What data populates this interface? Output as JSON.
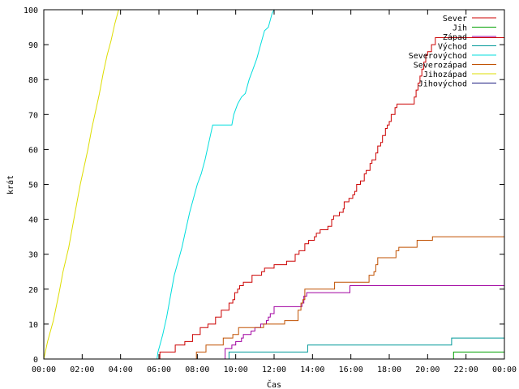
{
  "chart_data": {
    "type": "line",
    "title": "",
    "xlabel": "Čas",
    "ylabel": "krát",
    "x_unit": "hours",
    "xlim": [
      0,
      24
    ],
    "ylim": [
      0,
      100
    ],
    "xticks": [
      {
        "v": 0,
        "label": "00:00"
      },
      {
        "v": 2,
        "label": "02:00"
      },
      {
        "v": 4,
        "label": "04:00"
      },
      {
        "v": 6,
        "label": "06:00"
      },
      {
        "v": 8,
        "label": "08:00"
      },
      {
        "v": 10,
        "label": "10:00"
      },
      {
        "v": 12,
        "label": "12:00"
      },
      {
        "v": 14,
        "label": "14:00"
      },
      {
        "v": 16,
        "label": "16:00"
      },
      {
        "v": 18,
        "label": "18:00"
      },
      {
        "v": 20,
        "label": "20:00"
      },
      {
        "v": 22,
        "label": "22:00"
      },
      {
        "v": 24,
        "label": "00:00"
      }
    ],
    "yticks": [
      0,
      10,
      20,
      30,
      40,
      50,
      60,
      70,
      80,
      90,
      100
    ],
    "grid": false,
    "legend_position": "top-right",
    "series": [
      {
        "name": "Sever",
        "color": "#cc0000",
        "step": true,
        "points": [
          [
            0,
            0
          ],
          [
            6.0,
            0
          ],
          [
            6.05,
            2
          ],
          [
            6.8,
            2
          ],
          [
            6.85,
            4
          ],
          [
            7.3,
            4
          ],
          [
            7.35,
            5
          ],
          [
            7.7,
            5
          ],
          [
            7.75,
            7
          ],
          [
            8.1,
            7
          ],
          [
            8.15,
            9
          ],
          [
            8.5,
            9
          ],
          [
            8.55,
            10
          ],
          [
            8.9,
            10
          ],
          [
            8.95,
            12
          ],
          [
            9.2,
            12
          ],
          [
            9.25,
            14
          ],
          [
            9.6,
            14
          ],
          [
            9.65,
            16
          ],
          [
            9.8,
            16
          ],
          [
            9.85,
            17
          ],
          [
            9.95,
            19
          ],
          [
            10.1,
            20
          ],
          [
            10.2,
            21
          ],
          [
            10.4,
            22
          ],
          [
            10.8,
            22
          ],
          [
            10.85,
            24
          ],
          [
            11.3,
            24
          ],
          [
            11.35,
            25
          ],
          [
            11.5,
            26
          ],
          [
            11.9,
            26
          ],
          [
            12.0,
            27
          ],
          [
            12.6,
            27
          ],
          [
            12.65,
            28
          ],
          [
            13.0,
            28
          ],
          [
            13.1,
            30
          ],
          [
            13.3,
            31
          ],
          [
            13.6,
            33
          ],
          [
            13.8,
            34
          ],
          [
            14.1,
            35
          ],
          [
            14.2,
            36
          ],
          [
            14.4,
            37
          ],
          [
            14.8,
            38
          ],
          [
            15.0,
            40
          ],
          [
            15.1,
            41
          ],
          [
            15.4,
            42
          ],
          [
            15.6,
            43
          ],
          [
            15.65,
            45
          ],
          [
            15.9,
            46
          ],
          [
            16.1,
            47
          ],
          [
            16.2,
            48
          ],
          [
            16.3,
            50
          ],
          [
            16.5,
            51
          ],
          [
            16.7,
            53
          ],
          [
            16.8,
            54
          ],
          [
            17.0,
            56
          ],
          [
            17.1,
            57
          ],
          [
            17.3,
            59
          ],
          [
            17.4,
            61
          ],
          [
            17.55,
            62
          ],
          [
            17.65,
            64
          ],
          [
            17.8,
            66
          ],
          [
            17.9,
            67
          ],
          [
            18.0,
            68
          ],
          [
            18.1,
            70
          ],
          [
            18.3,
            72
          ],
          [
            18.4,
            73
          ],
          [
            19.2,
            73
          ],
          [
            19.3,
            75
          ],
          [
            19.4,
            77
          ],
          [
            19.5,
            79
          ],
          [
            19.6,
            81
          ],
          [
            19.7,
            83
          ],
          [
            19.8,
            85
          ],
          [
            19.9,
            87
          ],
          [
            20.0,
            88
          ],
          [
            20.2,
            90
          ],
          [
            20.4,
            92
          ],
          [
            24.0,
            92
          ]
        ]
      },
      {
        "name": "Jih",
        "color": "#00a000",
        "step": true,
        "points": [
          [
            0,
            0
          ],
          [
            21.3,
            0
          ],
          [
            21.35,
            2
          ],
          [
            24.0,
            2
          ]
        ]
      },
      {
        "name": "Západ",
        "color": "#a000a0",
        "step": true,
        "points": [
          [
            0,
            0
          ],
          [
            9.4,
            0
          ],
          [
            9.45,
            3
          ],
          [
            9.8,
            4
          ],
          [
            10.0,
            5
          ],
          [
            10.3,
            6
          ],
          [
            10.4,
            7
          ],
          [
            10.8,
            8
          ],
          [
            11.0,
            9
          ],
          [
            11.3,
            10
          ],
          [
            11.6,
            11
          ],
          [
            11.7,
            12
          ],
          [
            11.8,
            13
          ],
          [
            12.0,
            15
          ],
          [
            13.4,
            15
          ],
          [
            13.45,
            16
          ],
          [
            13.55,
            18
          ],
          [
            13.7,
            19
          ],
          [
            15.9,
            19
          ],
          [
            15.95,
            21
          ],
          [
            24.0,
            21
          ]
        ]
      },
      {
        "name": "Východ",
        "color": "#009999",
        "step": true,
        "points": [
          [
            0,
            0
          ],
          [
            9.6,
            0
          ],
          [
            9.65,
            2
          ],
          [
            13.7,
            2
          ],
          [
            13.75,
            4
          ],
          [
            21.2,
            4
          ],
          [
            21.25,
            6
          ],
          [
            24.0,
            6
          ]
        ]
      },
      {
        "name": "Severovýchod",
        "color": "#00dddd",
        "step": false,
        "points": [
          [
            0,
            0
          ],
          [
            5.9,
            0
          ],
          [
            5.95,
            2
          ],
          [
            6.1,
            5
          ],
          [
            6.2,
            7
          ],
          [
            6.4,
            12
          ],
          [
            6.6,
            18
          ],
          [
            6.8,
            24
          ],
          [
            7.0,
            28
          ],
          [
            7.2,
            32
          ],
          [
            7.4,
            37
          ],
          [
            7.6,
            42
          ],
          [
            7.8,
            46
          ],
          [
            8.0,
            50
          ],
          [
            8.2,
            53
          ],
          [
            8.4,
            57
          ],
          [
            8.6,
            62
          ],
          [
            8.8,
            67
          ],
          [
            9.8,
            67
          ],
          [
            9.9,
            70
          ],
          [
            10.1,
            73
          ],
          [
            10.3,
            75
          ],
          [
            10.5,
            76
          ],
          [
            10.7,
            80
          ],
          [
            10.9,
            83
          ],
          [
            11.1,
            86
          ],
          [
            11.3,
            90
          ],
          [
            11.5,
            94
          ],
          [
            11.7,
            95
          ],
          [
            11.9,
            99
          ],
          [
            12.0,
            100
          ]
        ]
      },
      {
        "name": "Severozápad",
        "color": "#c05000",
        "step": true,
        "points": [
          [
            0,
            0
          ],
          [
            7.9,
            0
          ],
          [
            7.95,
            2
          ],
          [
            8.4,
            2
          ],
          [
            8.45,
            4
          ],
          [
            9.3,
            4
          ],
          [
            9.35,
            6
          ],
          [
            9.8,
            6
          ],
          [
            9.85,
            7
          ],
          [
            10.1,
            7
          ],
          [
            10.15,
            9
          ],
          [
            11.4,
            9
          ],
          [
            11.45,
            10
          ],
          [
            12.5,
            10
          ],
          [
            12.55,
            11
          ],
          [
            13.2,
            11
          ],
          [
            13.25,
            14
          ],
          [
            13.4,
            16
          ],
          [
            13.5,
            17
          ],
          [
            13.6,
            20
          ],
          [
            15.1,
            20
          ],
          [
            15.15,
            22
          ],
          [
            16.9,
            22
          ],
          [
            16.95,
            24
          ],
          [
            17.2,
            25
          ],
          [
            17.3,
            27
          ],
          [
            17.4,
            29
          ],
          [
            18.3,
            29
          ],
          [
            18.35,
            31
          ],
          [
            18.5,
            32
          ],
          [
            19.4,
            32
          ],
          [
            19.45,
            34
          ],
          [
            20.2,
            34
          ],
          [
            20.25,
            35
          ],
          [
            24.0,
            35
          ]
        ]
      },
      {
        "name": "Jihozápad",
        "color": "#dddd00",
        "step": false,
        "points": [
          [
            0,
            0
          ],
          [
            0.2,
            5
          ],
          [
            0.5,
            11
          ],
          [
            0.8,
            19
          ],
          [
            1.0,
            25
          ],
          [
            1.3,
            32
          ],
          [
            1.5,
            38
          ],
          [
            1.7,
            44
          ],
          [
            1.9,
            50
          ],
          [
            2.1,
            55
          ],
          [
            2.3,
            60
          ],
          [
            2.5,
            66
          ],
          [
            2.7,
            71
          ],
          [
            2.9,
            76
          ],
          [
            3.1,
            82
          ],
          [
            3.3,
            87
          ],
          [
            3.5,
            91
          ],
          [
            3.7,
            96
          ],
          [
            3.9,
            100
          ]
        ]
      },
      {
        "name": "Jihovýchod",
        "color": "#1a1a80",
        "step": true,
        "points": []
      }
    ]
  }
}
